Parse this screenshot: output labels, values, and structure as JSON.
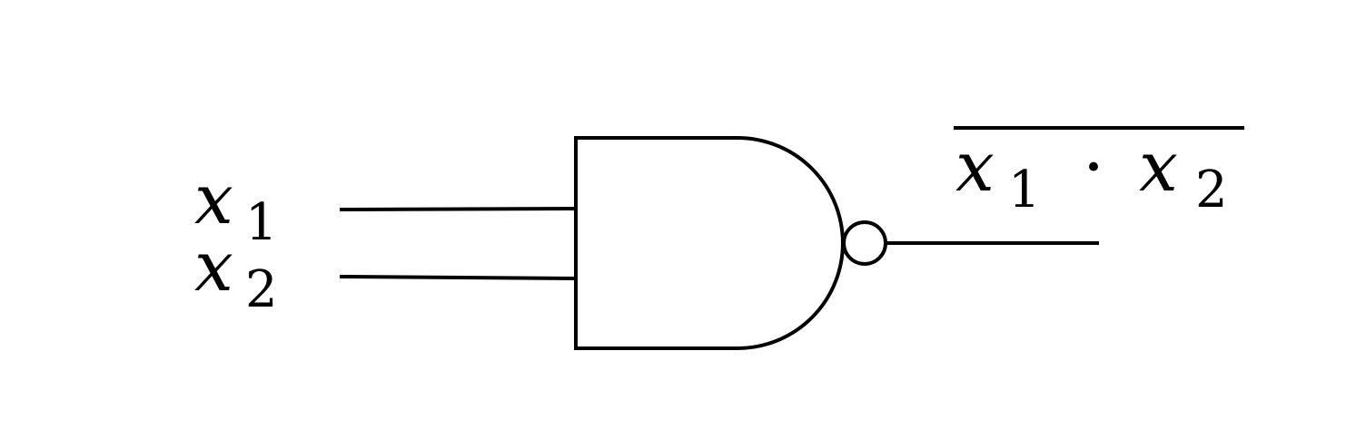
{
  "diagram": {
    "inputs": [
      {
        "var": "x",
        "sub": "1"
      },
      {
        "var": "x",
        "sub": "2"
      }
    ],
    "output": {
      "left": {
        "var": "x",
        "sub": "1"
      },
      "op": "·",
      "right": {
        "var": "x",
        "sub": "2"
      }
    },
    "colors": {
      "stroke": "#000000",
      "background": "#ffffff"
    }
  }
}
